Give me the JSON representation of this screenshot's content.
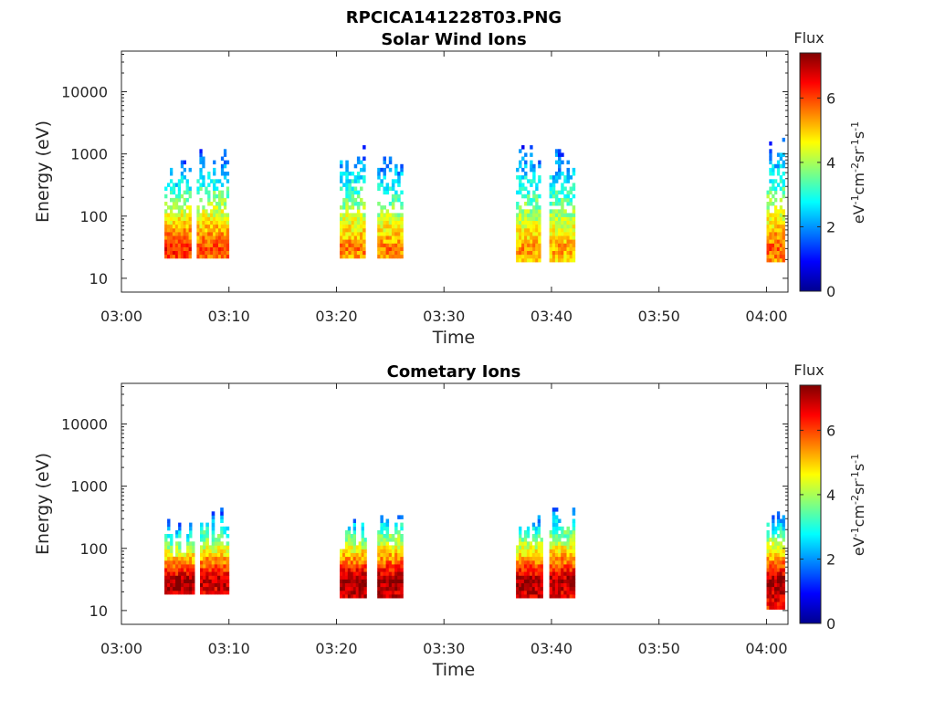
{
  "figure": {
    "title": "RPCICA141228T03.PNG"
  },
  "chart_data": [
    {
      "type": "heatmap",
      "title": "Solar Wind Ions",
      "xlabel": "Time",
      "ylabel": "Energy (eV)",
      "x_ticks": [
        "03:00",
        "03:10",
        "03:20",
        "03:30",
        "03:40",
        "03:50",
        "04:00"
      ],
      "xlim": [
        "03:00",
        "04:02"
      ],
      "y_scale": "log",
      "y_ticks": [
        "10",
        "100",
        "1000",
        "10000"
      ],
      "ylim": [
        6,
        45000
      ],
      "colorbar": {
        "title": "Flux",
        "label": "eV-1cm-2sr-1s-1",
        "ticks": [
          "0",
          "2",
          "4",
          "6"
        ],
        "range": [
          0,
          7.4
        ],
        "colormap": "jet"
      },
      "bursts": [
        {
          "start": "03:04",
          "end": "03:06.5",
          "lo": 22,
          "hi": 900,
          "peak": 6.3
        },
        {
          "start": "03:07",
          "end": "03:10",
          "lo": 22,
          "hi": 1400,
          "peak": 6.0
        },
        {
          "start": "03:20.3",
          "end": "03:22.7",
          "lo": 22,
          "hi": 1500,
          "peak": 5.6
        },
        {
          "start": "03:23.8",
          "end": "03:26.2",
          "lo": 22,
          "hi": 1100,
          "peak": 5.6
        },
        {
          "start": "03:36.7",
          "end": "03:39",
          "lo": 18,
          "hi": 1500,
          "peak": 5.4
        },
        {
          "start": "03:39.8",
          "end": "03:42.2",
          "lo": 18,
          "hi": 1500,
          "peak": 5.3
        },
        {
          "start": "04:00",
          "end": "04:01.7",
          "lo": 18,
          "hi": 1800,
          "peak": 5.8
        }
      ]
    },
    {
      "type": "heatmap",
      "title": "Cometary Ions",
      "xlabel": "Time",
      "ylabel": "Energy (eV)",
      "x_ticks": [
        "03:00",
        "03:10",
        "03:20",
        "03:30",
        "03:40",
        "03:50",
        "04:00"
      ],
      "xlim": [
        "03:00",
        "04:02"
      ],
      "y_scale": "log",
      "y_ticks": [
        "10",
        "100",
        "1000",
        "10000"
      ],
      "ylim": [
        6,
        45000
      ],
      "colorbar": {
        "title": "Flux",
        "label": "eV-1cm-2sr-1s-1",
        "ticks": [
          "0",
          "2",
          "4",
          "6"
        ],
        "range": [
          0,
          7.4
        ],
        "colormap": "jet"
      },
      "bursts": [
        {
          "start": "03:04",
          "end": "03:06.8",
          "lo": 18,
          "hi": 300,
          "peak": 7.2
        },
        {
          "start": "03:07.3",
          "end": "03:10",
          "lo": 18,
          "hi": 450,
          "peak": 7.0
        },
        {
          "start": "03:20.3",
          "end": "03:22.8",
          "lo": 15,
          "hi": 400,
          "peak": 7.3
        },
        {
          "start": "03:23.8",
          "end": "03:26.2",
          "lo": 15,
          "hi": 500,
          "peak": 7.2
        },
        {
          "start": "03:36.7",
          "end": "03:39.2",
          "lo": 15,
          "hi": 400,
          "peak": 7.2
        },
        {
          "start": "03:39.8",
          "end": "03:42.2",
          "lo": 15,
          "hi": 550,
          "peak": 7.1
        },
        {
          "start": "04:00",
          "end": "04:01.7",
          "lo": 10,
          "hi": 450,
          "peak": 7.2
        }
      ]
    }
  ]
}
